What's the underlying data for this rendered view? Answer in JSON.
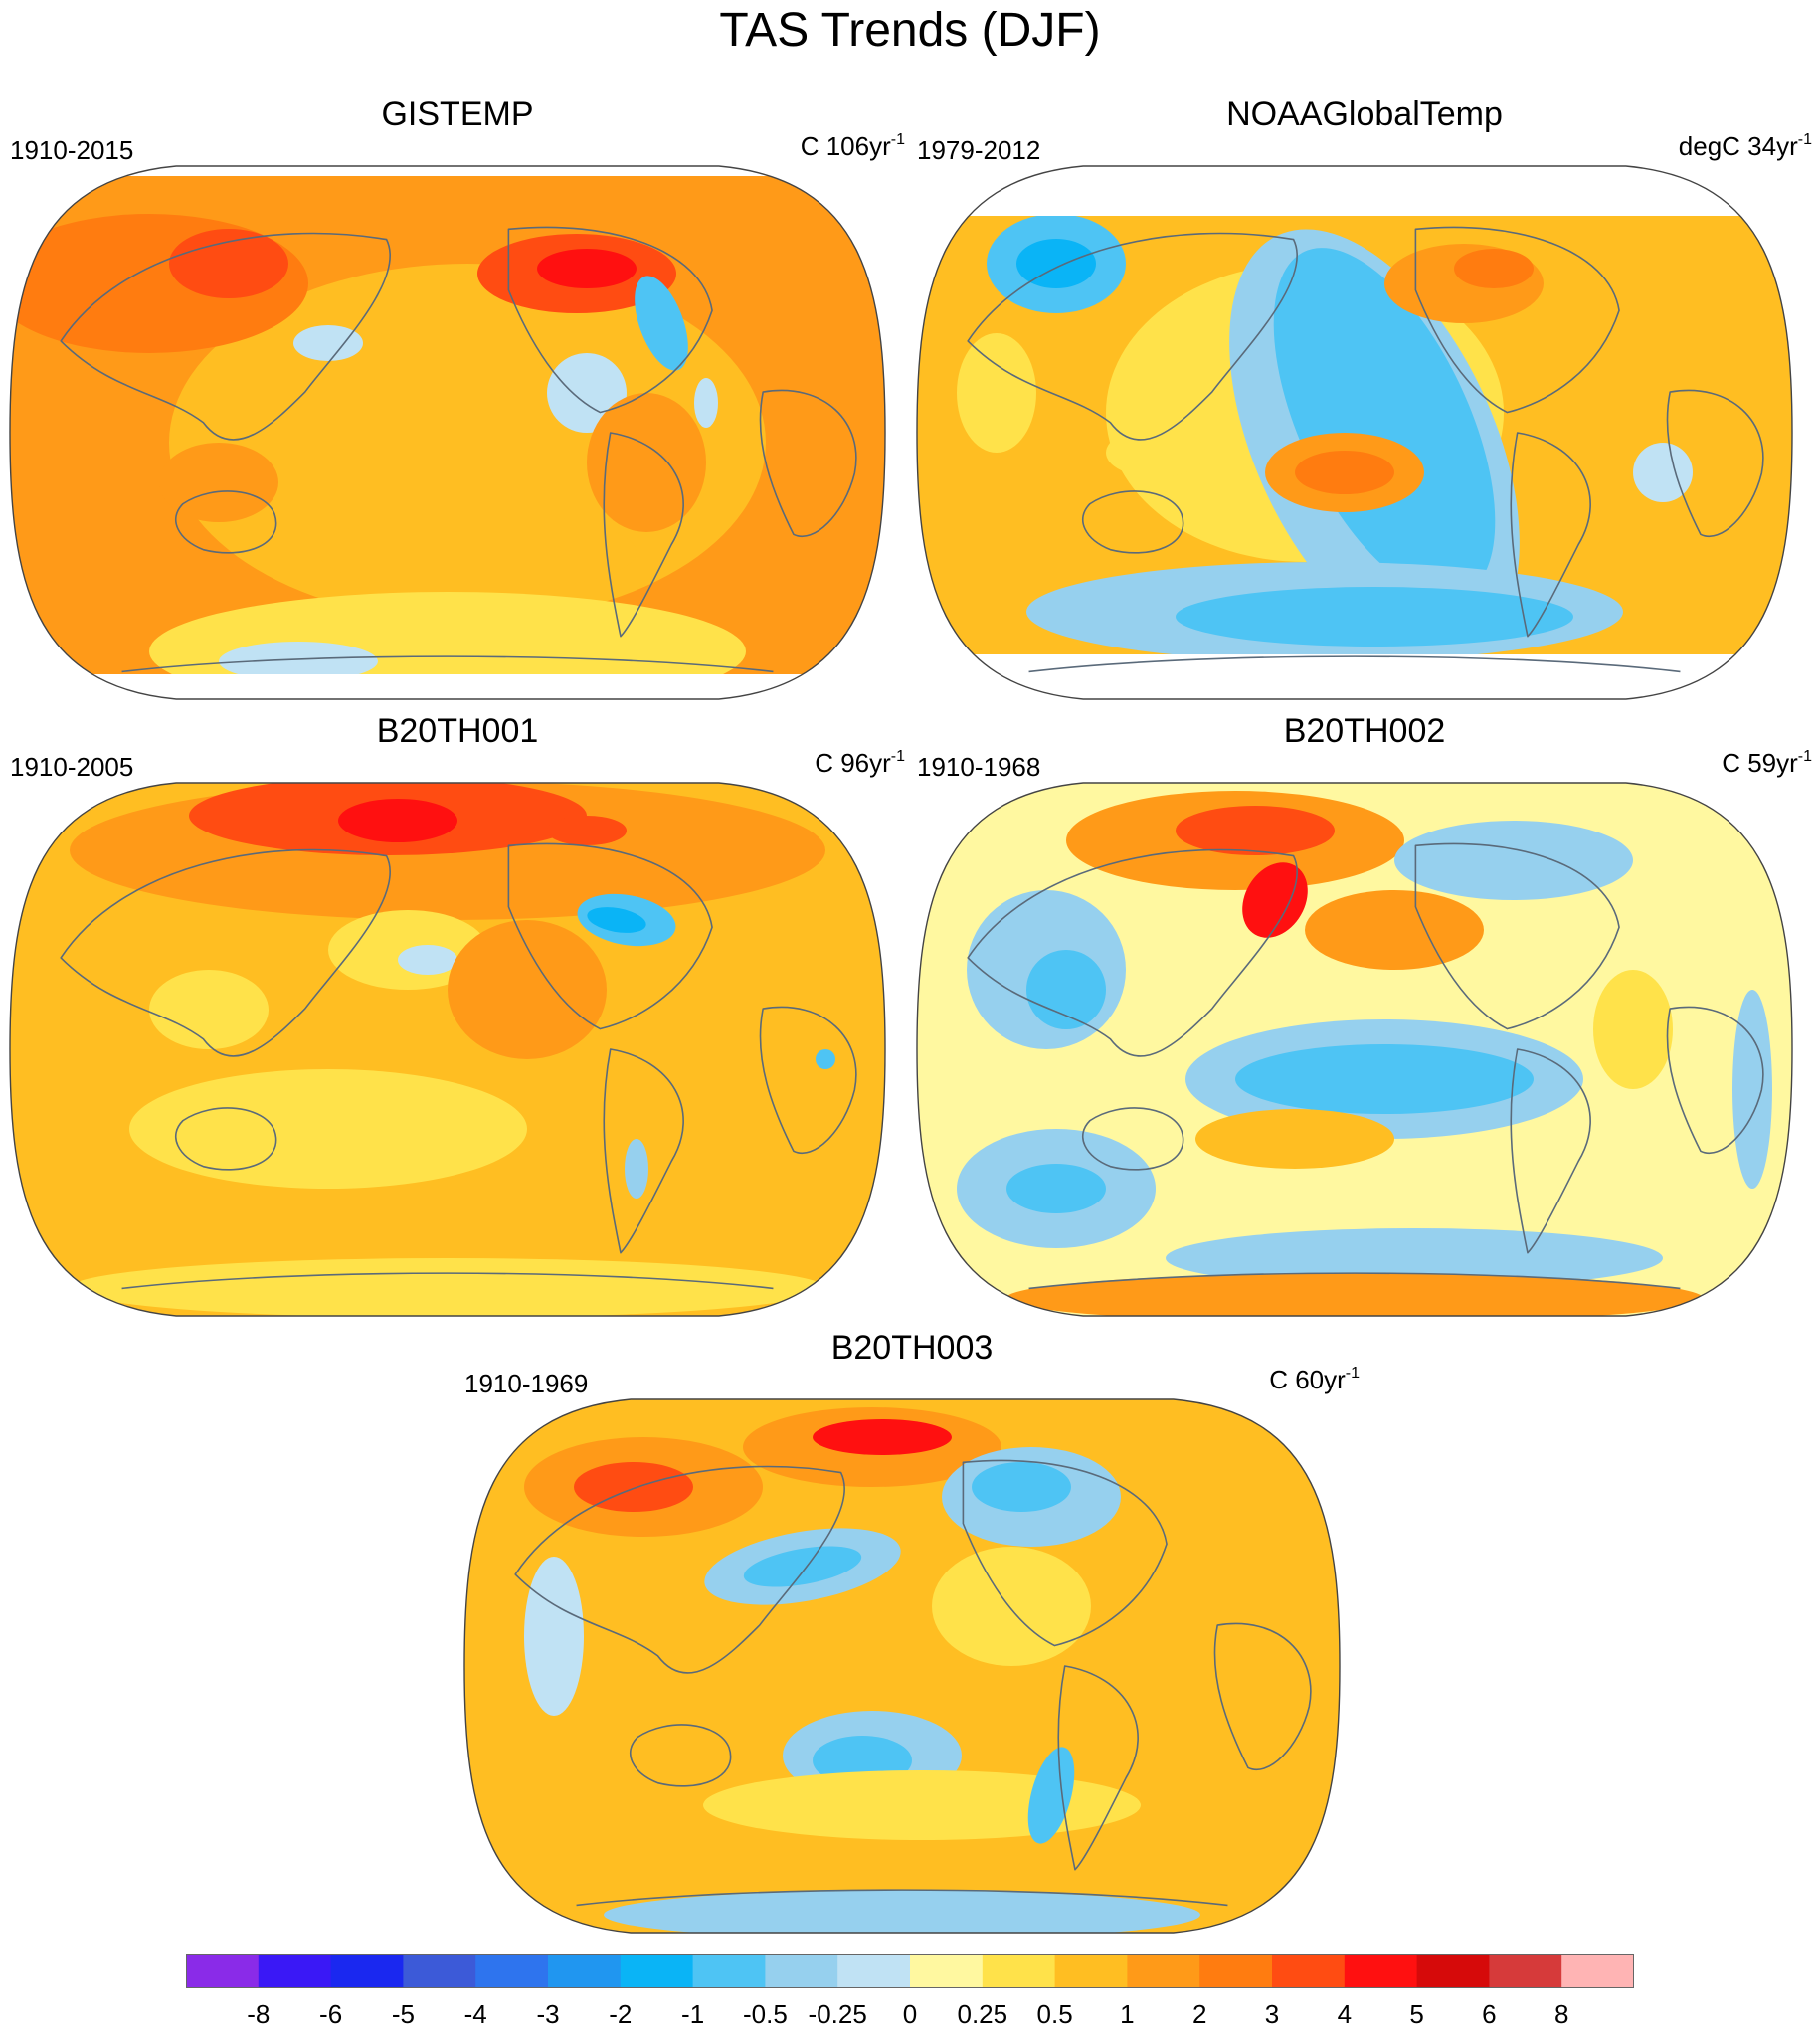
{
  "figure": {
    "title": "TAS Trends (DJF)"
  },
  "panels": [
    {
      "title": "GISTEMP",
      "period": "1910-2015",
      "units_prefix": "C 106yr",
      "units_sup": "-1",
      "style": "gistemp",
      "missing_arctic": true,
      "missing_antarctic": true
    },
    {
      "title": "NOAAGlobalTemp",
      "period": "1979-2012",
      "units_prefix": "degC 34yr",
      "units_sup": "-1",
      "style": "noaa",
      "missing_arctic": true,
      "missing_antarctic": true
    },
    {
      "title": "B20TH001",
      "period": "1910-2005",
      "units_prefix": "C 96yr",
      "units_sup": "-1",
      "style": "b001"
    },
    {
      "title": "B20TH002",
      "period": "1910-1968",
      "units_prefix": "C 59yr",
      "units_sup": "-1",
      "style": "b002"
    },
    {
      "title": "B20TH003",
      "period": "1910-1969",
      "units_prefix": "C 60yr",
      "units_sup": "-1",
      "style": "b003"
    }
  ],
  "colorbar": {
    "colors": [
      "#8a2be8",
      "#3a18f6",
      "#1a28f0",
      "#3c5ad8",
      "#2e74ee",
      "#2096f0",
      "#0ab4f6",
      "#4ec4f4",
      "#96d0ee",
      "#c0e2f4",
      "#fff8a0",
      "#ffe24a",
      "#ffbe22",
      "#ff9a18",
      "#ff7c10",
      "#ff4c12",
      "#ff1010",
      "#d60a0a",
      "#d63a3a",
      "#ffb4b4"
    ],
    "labels": [
      "-8",
      "-6",
      "-5",
      "-4",
      "-3",
      "-2",
      "-1",
      "-0.5",
      "-0.25",
      "0",
      "0.25",
      "0.5",
      "1",
      "2",
      "3",
      "4",
      "5",
      "6",
      "8"
    ]
  }
}
